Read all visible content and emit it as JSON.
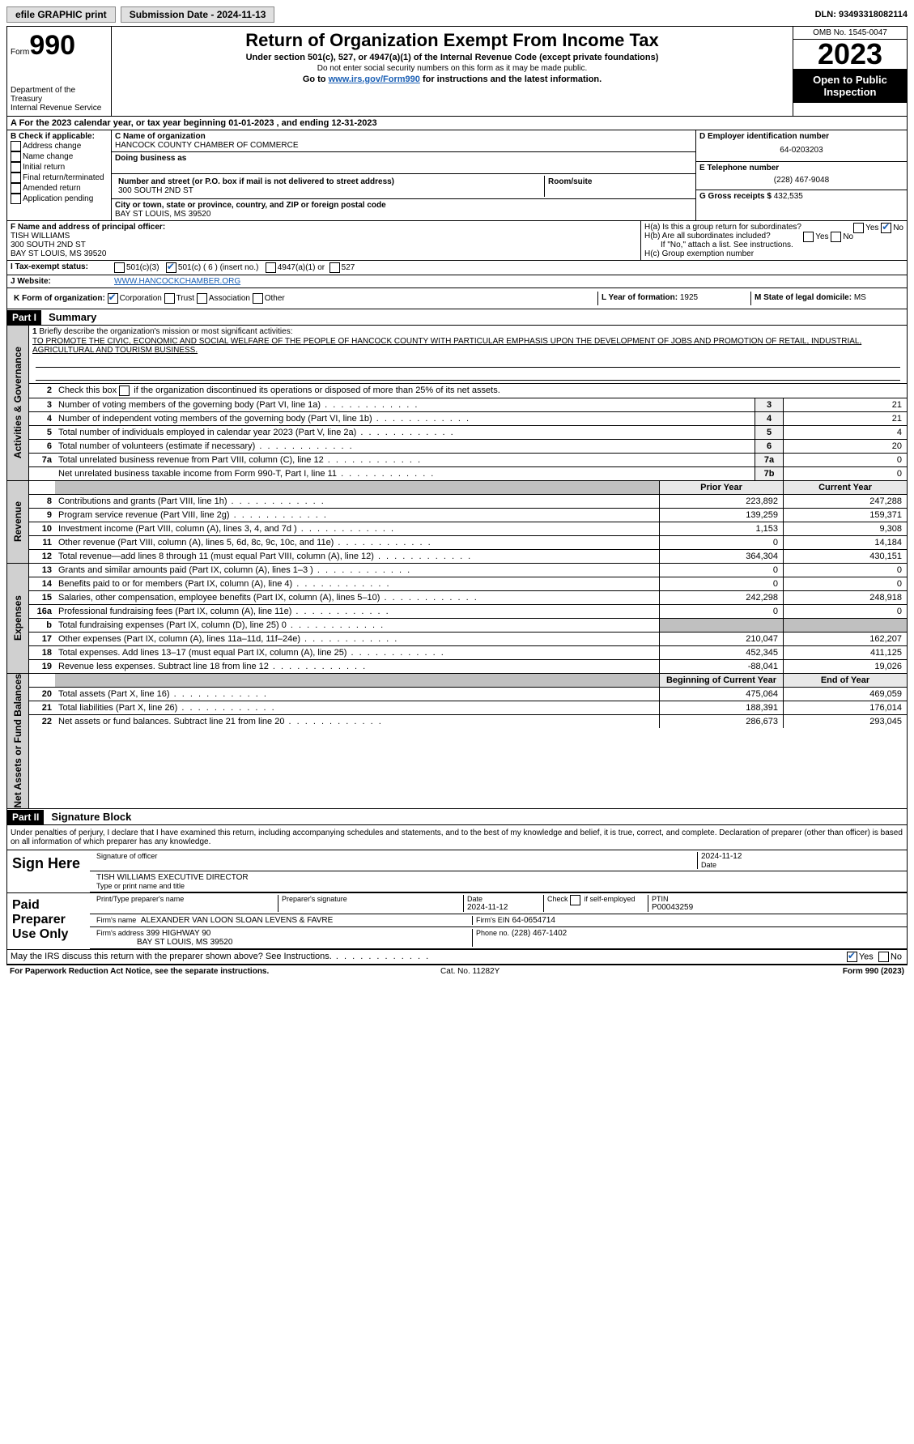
{
  "top": {
    "efile": "efile GRAPHIC print",
    "submission": "Submission Date - 2024-11-13",
    "dln": "DLN: 93493318082114"
  },
  "header": {
    "form_prefix": "Form",
    "form_no": "990",
    "dept": "Department of the Treasury",
    "irs": "Internal Revenue Service",
    "title": "Return of Organization Exempt From Income Tax",
    "sub1": "Under section 501(c), 527, or 4947(a)(1) of the Internal Revenue Code (except private foundations)",
    "sub2": "Do not enter social security numbers on this form as it may be made public.",
    "sub3_pre": "Go to ",
    "sub3_link": "www.irs.gov/Form990",
    "sub3_post": " for instructions and the latest information.",
    "omb": "OMB No. 1545-0047",
    "year": "2023",
    "open": "Open to Public Inspection"
  },
  "rowA": "A For the 2023 calendar year, or tax year beginning 01-01-2023   , and ending 12-31-2023",
  "B": {
    "label": "B Check if applicable:",
    "items": [
      "Address change",
      "Name change",
      "Initial return",
      "Final return/terminated",
      "Amended return",
      "Application pending"
    ]
  },
  "C": {
    "name_lbl": "C Name of organization",
    "name": "HANCOCK COUNTY CHAMBER OF COMMERCE",
    "dba_lbl": "Doing business as",
    "street_lbl": "Number and street (or P.O. box if mail is not delivered to street address)",
    "street": "300 SOUTH 2ND ST",
    "room_lbl": "Room/suite",
    "city_lbl": "City or town, state or province, country, and ZIP or foreign postal code",
    "city": "BAY ST LOUIS, MS  39520"
  },
  "D": {
    "lbl": "D Employer identification number",
    "val": "64-0203203"
  },
  "E": {
    "lbl": "E Telephone number",
    "val": "(228) 467-9048"
  },
  "G": {
    "lbl": "G Gross receipts $",
    "val": "432,535"
  },
  "F": {
    "lbl": "F  Name and address of principal officer:",
    "name": "TISH WILLIAMS",
    "addr1": "300 SOUTH 2ND ST",
    "addr2": "BAY ST LOUIS, MS  39520"
  },
  "H": {
    "a": "H(a)  Is this a group return for subordinates?",
    "a_no": "No",
    "b": "H(b)  Are all subordinates included?",
    "b_note": "If \"No,\" attach a list. See instructions.",
    "c": "H(c)  Group exemption number"
  },
  "I": {
    "lbl": "I  Tax-exempt status:",
    "opt1": "501(c)(3)",
    "opt2": "501(c) ( 6 ) (insert no.)",
    "opt3": "4947(a)(1) or",
    "opt4": "527"
  },
  "J": {
    "lbl": "J  Website:",
    "val": "WWW.HANCOCKCHAMBER.ORG"
  },
  "K": {
    "lbl": "K Form of organization:",
    "o1": "Corporation",
    "o2": "Trust",
    "o3": "Association",
    "o4": "Other"
  },
  "L": {
    "lbl": "L Year of formation:",
    "val": "1925"
  },
  "M": {
    "lbl": "M State of legal domicile:",
    "val": "MS"
  },
  "part1": {
    "hdr": "Part I",
    "title": "Summary"
  },
  "summary": {
    "l1_lbl": "Briefly describe the organization's mission or most significant activities:",
    "l1_text": "TO PROMOTE THE CIVIC, ECONOMIC AND SOCIAL WELFARE OF THE PEOPLE OF HANCOCK COUNTY WITH PARTICULAR EMPHASIS UPON THE DEVELOPMENT OF JOBS AND PROMOTION OF RETAIL, INDUSTRIAL, AGRICULTURAL AND TOURISM BUSINESS.",
    "l2": "Check this box    if the organization discontinued its operations or disposed of more than 25% of its net assets.",
    "lines": [
      {
        "n": "3",
        "d": "Number of voting members of the governing body (Part VI, line 1a)",
        "box": "3",
        "v": "21"
      },
      {
        "n": "4",
        "d": "Number of independent voting members of the governing body (Part VI, line 1b)",
        "box": "4",
        "v": "21"
      },
      {
        "n": "5",
        "d": "Total number of individuals employed in calendar year 2023 (Part V, line 2a)",
        "box": "5",
        "v": "4"
      },
      {
        "n": "6",
        "d": "Total number of volunteers (estimate if necessary)",
        "box": "6",
        "v": "20"
      },
      {
        "n": "7a",
        "d": "Total unrelated business revenue from Part VIII, column (C), line 12",
        "box": "7a",
        "v": "0"
      },
      {
        "n": "",
        "d": "Net unrelated business taxable income from Form 990-T, Part I, line 11",
        "box": "7b",
        "v": "0"
      }
    ],
    "col_prior": "Prior Year",
    "col_current": "Current Year",
    "revenue": [
      {
        "n": "8",
        "d": "Contributions and grants (Part VIII, line 1h)",
        "p": "223,892",
        "c": "247,288"
      },
      {
        "n": "9",
        "d": "Program service revenue (Part VIII, line 2g)",
        "p": "139,259",
        "c": "159,371"
      },
      {
        "n": "10",
        "d": "Investment income (Part VIII, column (A), lines 3, 4, and 7d )",
        "p": "1,153",
        "c": "9,308"
      },
      {
        "n": "11",
        "d": "Other revenue (Part VIII, column (A), lines 5, 6d, 8c, 9c, 10c, and 11e)",
        "p": "0",
        "c": "14,184"
      },
      {
        "n": "12",
        "d": "Total revenue—add lines 8 through 11 (must equal Part VIII, column (A), line 12)",
        "p": "364,304",
        "c": "430,151"
      }
    ],
    "expenses": [
      {
        "n": "13",
        "d": "Grants and similar amounts paid (Part IX, column (A), lines 1–3 )",
        "p": "0",
        "c": "0"
      },
      {
        "n": "14",
        "d": "Benefits paid to or for members (Part IX, column (A), line 4)",
        "p": "0",
        "c": "0"
      },
      {
        "n": "15",
        "d": "Salaries, other compensation, employee benefits (Part IX, column (A), lines 5–10)",
        "p": "242,298",
        "c": "248,918"
      },
      {
        "n": "16a",
        "d": "Professional fundraising fees (Part IX, column (A), line 11e)",
        "p": "0",
        "c": "0"
      },
      {
        "n": "b",
        "d": "Total fundraising expenses (Part IX, column (D), line 25) 0",
        "p": "",
        "c": "",
        "grey": true
      },
      {
        "n": "17",
        "d": "Other expenses (Part IX, column (A), lines 11a–11d, 11f–24e)",
        "p": "210,047",
        "c": "162,207"
      },
      {
        "n": "18",
        "d": "Total expenses. Add lines 13–17 (must equal Part IX, column (A), line 25)",
        "p": "452,345",
        "c": "411,125"
      },
      {
        "n": "19",
        "d": "Revenue less expenses. Subtract line 18 from line 12",
        "p": "-88,041",
        "c": "19,026"
      }
    ],
    "col_begin": "Beginning of Current Year",
    "col_end": "End of Year",
    "netassets": [
      {
        "n": "20",
        "d": "Total assets (Part X, line 16)",
        "p": "475,064",
        "c": "469,059"
      },
      {
        "n": "21",
        "d": "Total liabilities (Part X, line 26)",
        "p": "188,391",
        "c": "176,014"
      },
      {
        "n": "22",
        "d": "Net assets or fund balances. Subtract line 21 from line 20",
        "p": "286,673",
        "c": "293,045"
      }
    ],
    "tabs": {
      "ag": "Activities & Governance",
      "rev": "Revenue",
      "exp": "Expenses",
      "na": "Net Assets or Fund Balances"
    }
  },
  "part2": {
    "hdr": "Part II",
    "title": "Signature Block"
  },
  "sig": {
    "decl": "Under penalties of perjury, I declare that I have examined this return, including accompanying schedules and statements, and to the best of my knowledge and belief, it is true, correct, and complete. Declaration of preparer (other than officer) is based on all information of which preparer has any knowledge.",
    "sign_here": "Sign Here",
    "sig_officer": "Signature of officer",
    "date_lbl": "Date",
    "date1": "2024-11-12",
    "officer": "TISH WILLIAMS  EXECUTIVE DIRECTOR",
    "type_lbl": "Type or print name and title",
    "paid": "Paid Preparer Use Only",
    "prep_name_lbl": "Print/Type preparer's name",
    "prep_sig_lbl": "Preparer's signature",
    "date2": "2024-11-12",
    "check_lbl": "Check      if self-employed",
    "ptin_lbl": "PTIN",
    "ptin": "P00043259",
    "firm_name_lbl": "Firm's name",
    "firm_name": "ALEXANDER VAN LOON SLOAN LEVENS & FAVRE",
    "firm_ein_lbl": "Firm's EIN",
    "firm_ein": "64-0654714",
    "firm_addr_lbl": "Firm's address",
    "firm_addr1": "399 HIGHWAY 90",
    "firm_addr2": "BAY ST LOUIS, MS  39520",
    "phone_lbl": "Phone no.",
    "phone": "(228) 467-1402",
    "discuss": "May the IRS discuss this return with the preparer shown above? See Instructions.",
    "yes": "Yes",
    "no": "No"
  },
  "footer": {
    "pra": "For Paperwork Reduction Act Notice, see the separate instructions.",
    "cat": "Cat. No. 11282Y",
    "form": "Form 990 (2023)"
  }
}
